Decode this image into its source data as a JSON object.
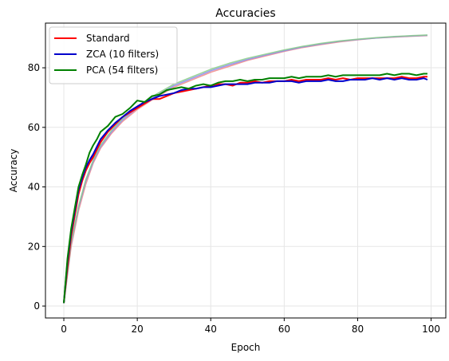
{
  "chart_data": {
    "type": "line",
    "title": "Accuracies",
    "xlabel": "Epoch",
    "ylabel": "Accuracy",
    "xlim": [
      -5,
      104
    ],
    "ylim": [
      -4,
      95
    ],
    "xticks": [
      0,
      20,
      40,
      60,
      80,
      100
    ],
    "yticks": [
      0,
      20,
      40,
      60,
      80
    ],
    "grid": true,
    "legend_position": "top-left",
    "series": [
      {
        "name": "Standard",
        "color": "#ff0000",
        "kind": "test",
        "x": [
          0,
          1,
          2,
          3,
          4,
          5,
          6,
          7,
          8,
          9,
          10,
          12,
          14,
          16,
          18,
          20,
          22,
          24,
          26,
          28,
          30,
          32,
          34,
          36,
          38,
          40,
          42,
          44,
          46,
          48,
          50,
          52,
          54,
          56,
          58,
          60,
          62,
          64,
          66,
          68,
          70,
          72,
          74,
          76,
          78,
          80,
          82,
          84,
          86,
          88,
          90,
          92,
          94,
          96,
          98,
          99
        ],
        "values": [
          1.0,
          13.0,
          23.5,
          30.5,
          37.5,
          42.0,
          45.5,
          48.0,
          50.0,
          52.5,
          55.0,
          58.5,
          61.0,
          63.5,
          65.0,
          66.5,
          68.0,
          69.5,
          69.5,
          70.5,
          71.5,
          72.0,
          72.5,
          73.0,
          73.5,
          74.0,
          74.5,
          74.5,
          74.0,
          75.0,
          75.0,
          75.5,
          75.0,
          75.5,
          75.5,
          75.5,
          76.0,
          75.5,
          76.0,
          76.0,
          76.0,
          76.5,
          76.0,
          76.5,
          76.0,
          76.5,
          76.5,
          76.5,
          76.5,
          76.5,
          76.5,
          77.0,
          76.5,
          76.5,
          77.0,
          77.0
        ]
      },
      {
        "name": "ZCA (10 filters)",
        "color": "#0000cc",
        "kind": "test",
        "x": [
          0,
          1,
          2,
          3,
          4,
          5,
          6,
          7,
          8,
          9,
          10,
          12,
          14,
          16,
          18,
          20,
          22,
          24,
          26,
          28,
          30,
          32,
          34,
          36,
          38,
          40,
          42,
          44,
          46,
          48,
          50,
          52,
          54,
          56,
          58,
          60,
          62,
          64,
          66,
          68,
          70,
          72,
          74,
          76,
          78,
          80,
          82,
          84,
          86,
          88,
          90,
          92,
          94,
          96,
          98,
          99
        ],
        "values": [
          1.0,
          15.0,
          25.0,
          32.0,
          39.0,
          43.0,
          46.5,
          49.0,
          51.0,
          53.5,
          56.0,
          59.0,
          61.5,
          63.5,
          65.5,
          67.0,
          68.5,
          69.5,
          70.5,
          71.0,
          71.5,
          72.5,
          73.0,
          73.0,
          73.5,
          73.5,
          74.0,
          74.5,
          74.5,
          74.5,
          74.5,
          75.0,
          75.0,
          75.0,
          75.5,
          75.5,
          75.5,
          75.0,
          75.5,
          75.5,
          75.5,
          76.0,
          75.5,
          75.5,
          76.0,
          76.0,
          76.0,
          76.5,
          76.0,
          76.5,
          76.0,
          76.5,
          76.0,
          76.0,
          76.5,
          76.0
        ]
      },
      {
        "name": "PCA (54 filters)",
        "color": "#008000",
        "kind": "test",
        "x": [
          0,
          1,
          2,
          3,
          4,
          5,
          6,
          7,
          8,
          9,
          10,
          12,
          14,
          16,
          18,
          20,
          22,
          24,
          26,
          28,
          30,
          32,
          34,
          36,
          38,
          40,
          42,
          44,
          46,
          48,
          50,
          52,
          54,
          56,
          58,
          60,
          62,
          64,
          66,
          68,
          70,
          72,
          74,
          76,
          78,
          80,
          82,
          84,
          86,
          88,
          90,
          92,
          94,
          96,
          98,
          99
        ],
        "values": [
          1.0,
          16.0,
          26.0,
          33.0,
          40.0,
          44.0,
          47.5,
          51.5,
          54.0,
          56.0,
          58.5,
          60.5,
          63.5,
          64.5,
          66.5,
          69.0,
          68.5,
          70.5,
          71.0,
          72.5,
          73.0,
          73.5,
          73.0,
          74.0,
          74.5,
          74.0,
          75.0,
          75.5,
          75.5,
          76.0,
          75.5,
          76.0,
          76.0,
          76.5,
          76.5,
          76.5,
          77.0,
          76.5,
          77.0,
          77.0,
          77.0,
          77.5,
          77.0,
          77.5,
          77.5,
          77.5,
          77.5,
          77.5,
          77.5,
          78.0,
          77.5,
          78.0,
          78.0,
          77.5,
          78.0,
          78.0
        ]
      },
      {
        "color": "#ee8888",
        "kind": "train",
        "x": [
          0,
          2,
          4,
          6,
          8,
          10,
          13,
          16,
          20,
          25,
          30,
          35,
          40,
          45,
          50,
          55,
          60,
          65,
          70,
          75,
          80,
          85,
          90,
          95,
          99
        ],
        "values": [
          1.0,
          20.0,
          32.0,
          41.0,
          48.0,
          53.0,
          58.0,
          62.0,
          66.0,
          70.0,
          73.5,
          76.0,
          78.5,
          80.5,
          82.5,
          84.0,
          85.5,
          86.8,
          87.8,
          88.7,
          89.4,
          90.0,
          90.3,
          90.6,
          90.8
        ]
      },
      {
        "color": "#8888ee",
        "kind": "train",
        "x": [
          0,
          2,
          4,
          6,
          8,
          10,
          13,
          16,
          20,
          25,
          30,
          35,
          40,
          45,
          50,
          55,
          60,
          65,
          70,
          75,
          80,
          85,
          90,
          95,
          99
        ],
        "values": [
          1.0,
          21.0,
          33.0,
          42.0,
          48.5,
          53.5,
          58.5,
          62.5,
          66.5,
          70.5,
          74.0,
          76.5,
          79.0,
          81.0,
          82.8,
          84.3,
          85.7,
          87.0,
          88.0,
          88.9,
          89.5,
          90.0,
          90.4,
          90.7,
          90.9
        ]
      },
      {
        "color": "#88cc88",
        "kind": "train",
        "x": [
          0,
          2,
          4,
          6,
          8,
          10,
          13,
          16,
          20,
          25,
          30,
          35,
          40,
          45,
          50,
          55,
          60,
          65,
          70,
          75,
          80,
          85,
          90,
          95,
          99
        ],
        "values": [
          1.0,
          21.5,
          33.5,
          42.5,
          49.0,
          54.0,
          59.0,
          63.0,
          67.0,
          71.0,
          74.5,
          77.0,
          79.5,
          81.5,
          83.2,
          84.6,
          86.0,
          87.2,
          88.2,
          89.0,
          89.6,
          90.1,
          90.5,
          90.8,
          91.0
        ]
      }
    ]
  }
}
